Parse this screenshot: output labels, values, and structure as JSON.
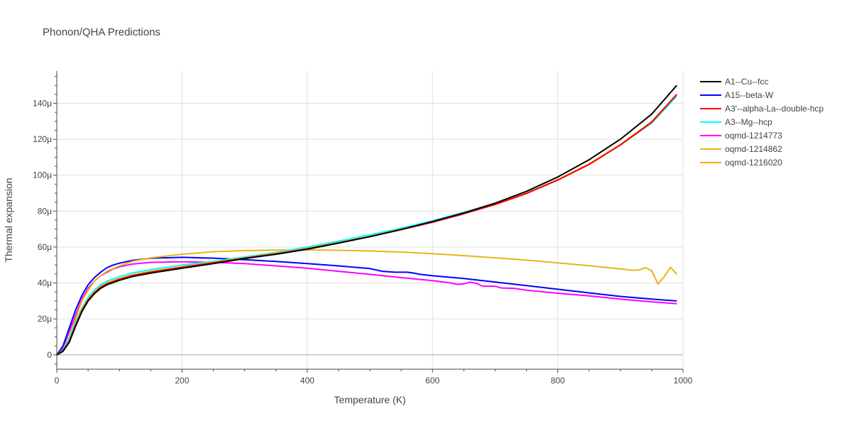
{
  "chart_data": {
    "type": "line",
    "title": "Phonon/QHA Predictions",
    "xlabel": "Temperature (K)",
    "ylabel": "Thermal expansion",
    "xlim": [
      0,
      1000
    ],
    "ylim": [
      -8,
      158
    ],
    "x_ticks": [
      0,
      200,
      400,
      600,
      800,
      1000
    ],
    "x_tick_labels": [
      "0",
      "200",
      "400",
      "600",
      "800",
      "1000"
    ],
    "y_ticks": [
      0,
      20,
      40,
      60,
      80,
      100,
      120,
      140
    ],
    "y_tick_labels": [
      "0",
      "20μ",
      "40μ",
      "60μ",
      "80μ",
      "100μ",
      "120μ",
      "140μ"
    ],
    "grid": true,
    "legend_position": "right",
    "series": [
      {
        "name": "A1--Cu--fcc",
        "color": "#000000",
        "x": [
          0,
          10,
          20,
          30,
          40,
          50,
          60,
          70,
          80,
          100,
          120,
          150,
          200,
          250,
          300,
          350,
          400,
          450,
          500,
          550,
          600,
          650,
          700,
          750,
          800,
          850,
          900,
          950,
          990
        ],
        "y": [
          0,
          2,
          7,
          16,
          24,
          30,
          34,
          37,
          39,
          41.5,
          43.5,
          45.5,
          48.2,
          50.8,
          53.6,
          56,
          58.8,
          62.2,
          65.8,
          69.8,
          74.2,
          79,
          84.4,
          91,
          99,
          108.6,
          120,
          134,
          150
        ]
      },
      {
        "name": "A15--beta-W",
        "color": "#0000ff",
        "x": [
          0,
          10,
          20,
          30,
          40,
          50,
          60,
          70,
          80,
          90,
          100,
          120,
          150,
          200,
          250,
          300,
          350,
          400,
          450,
          500,
          520,
          540,
          560,
          570,
          580,
          600,
          650,
          700,
          750,
          800,
          850,
          900,
          950,
          990
        ],
        "y": [
          0,
          5,
          15,
          25,
          33,
          39,
          43,
          46,
          48.5,
          50,
          51,
          52.5,
          53.8,
          54.3,
          53.8,
          53,
          52,
          50.8,
          49.5,
          48,
          46.5,
          46,
          46,
          45.5,
          44.8,
          44,
          42.5,
          40.5,
          38.5,
          36.5,
          34.5,
          32.5,
          31,
          30
        ]
      },
      {
        "name": "A3'--alpha-La--double-hcp",
        "color": "#ff0000",
        "x": [
          0,
          10,
          20,
          30,
          40,
          50,
          60,
          70,
          80,
          100,
          120,
          150,
          200,
          250,
          300,
          350,
          400,
          450,
          500,
          550,
          600,
          650,
          700,
          750,
          800,
          850,
          900,
          950,
          990
        ],
        "y": [
          0,
          2.5,
          7.5,
          16.5,
          24.5,
          30.5,
          34.5,
          37.5,
          39.5,
          42,
          44,
          46,
          48.7,
          51.2,
          53.8,
          56.2,
          59,
          62.3,
          65.8,
          69.7,
          73.8,
          78.5,
          83.7,
          89.8,
          97.3,
          106,
          116.8,
          129.5,
          145
        ]
      },
      {
        "name": "A3--Mg--hcp",
        "color": "#00ffff",
        "x": [
          0,
          10,
          20,
          30,
          40,
          50,
          60,
          70,
          80,
          100,
          120,
          150,
          200,
          250,
          300,
          350,
          400,
          450,
          500,
          550,
          600,
          650,
          700,
          750,
          800,
          850,
          900,
          950,
          990
        ],
        "y": [
          0,
          3,
          9,
          18,
          26,
          32,
          36,
          39,
          41,
          43.5,
          45.5,
          47.5,
          50,
          52,
          54.5,
          57,
          60,
          63.3,
          66.8,
          70.5,
          74.6,
          79.3,
          84.4,
          90.3,
          97.5,
          106.3,
          116.8,
          129,
          144
        ]
      },
      {
        "name": "oqmd-1214773",
        "color": "#ff00ff",
        "x": [
          0,
          10,
          20,
          30,
          40,
          50,
          60,
          70,
          80,
          90,
          100,
          120,
          150,
          200,
          250,
          300,
          350,
          400,
          450,
          500,
          550,
          600,
          630,
          640,
          650,
          660,
          670,
          680,
          700,
          710,
          730,
          750,
          800,
          850,
          900,
          950,
          990
        ],
        "y": [
          0,
          4,
          13,
          22,
          31,
          37,
          41,
          44,
          46,
          47.8,
          49,
          50.5,
          51.5,
          51.8,
          51.5,
          50.8,
          49.5,
          48.2,
          46.5,
          44.8,
          43,
          41.3,
          40,
          39.2,
          39.5,
          40.5,
          39.8,
          38.2,
          38.2,
          37.2,
          37,
          36,
          34.3,
          32.8,
          31,
          29.5,
          28.5
        ]
      },
      {
        "name": "oqmd-1214862",
        "color": "#e7b416",
        "x": [
          0,
          10,
          20,
          30,
          40,
          50,
          60,
          70,
          80,
          100,
          120,
          150,
          200,
          250,
          300,
          350,
          400,
          450,
          500,
          550,
          600,
          650,
          700,
          750,
          800,
          850,
          900,
          920,
          930,
          940,
          950,
          960,
          970,
          980,
          990
        ],
        "y": [
          0,
          3,
          10,
          20,
          30,
          36,
          41,
          44,
          46.5,
          49.5,
          52,
          54,
          56,
          57.4,
          58,
          58.3,
          58.4,
          58.2,
          57.8,
          57.2,
          56.3,
          55.2,
          54,
          52.7,
          51.2,
          49.6,
          47.8,
          47,
          47.3,
          48.5,
          46.8,
          39.5,
          43.5,
          48.7,
          45
        ]
      },
      {
        "name": "oqmd-1216020",
        "color": "#ffa500",
        "x": [
          0,
          10,
          20,
          30,
          40,
          50,
          60,
          70,
          80,
          100,
          120,
          150,
          200,
          250,
          300,
          350,
          400,
          450,
          500,
          550,
          600,
          650,
          700,
          750,
          800,
          850,
          900,
          950,
          990
        ],
        "y": [
          0,
          2,
          7.5,
          16.8,
          25,
          31,
          35,
          38,
          40,
          42.5,
          44.5,
          46.5,
          49,
          51.5,
          54,
          56.5,
          59.2,
          62.5,
          66,
          69.9,
          74,
          78.7,
          84,
          90,
          97.5,
          106.3,
          117,
          129.8,
          145
        ]
      }
    ]
  }
}
